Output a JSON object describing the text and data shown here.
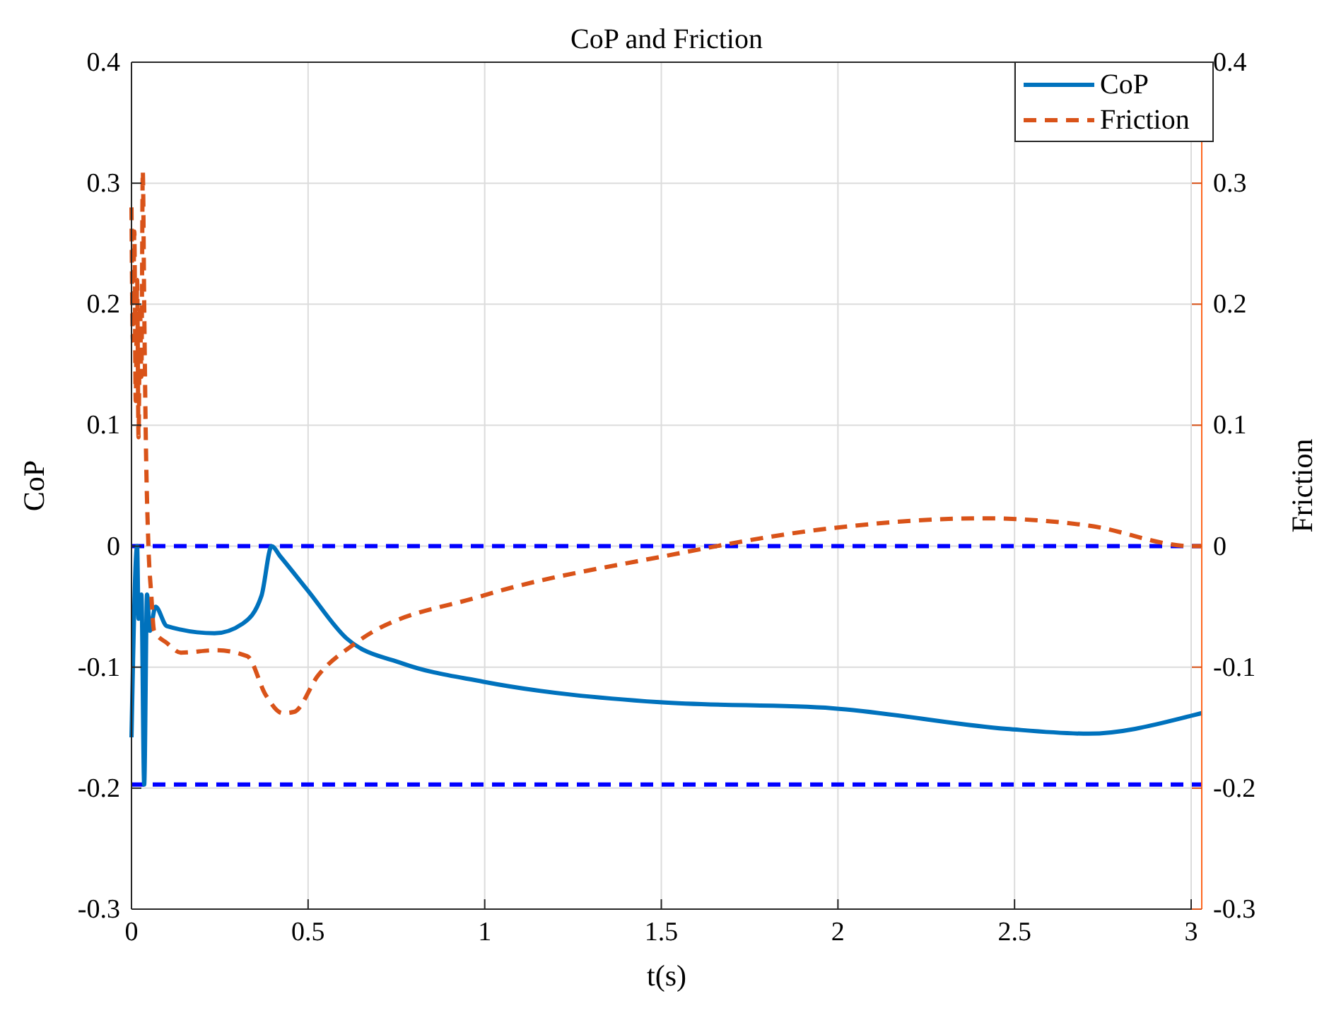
{
  "chart_data": {
    "type": "line",
    "title": "CoP and Friction",
    "xlabel": "t(s)",
    "ylabel": "CoP",
    "y2label": "Friction",
    "xlim": [
      0,
      3.03
    ],
    "xticks": [
      0,
      0.5,
      1,
      1.5,
      2,
      2.5,
      3
    ],
    "ylim": [
      -0.3,
      0.4
    ],
    "yticks": [
      -0.3,
      -0.2,
      -0.1,
      0,
      0.1,
      0.2,
      0.3,
      0.4
    ],
    "y2lim": [
      -0.3,
      0.4
    ],
    "y2ticks": [
      -0.3,
      -0.2,
      -0.1,
      0,
      0.1,
      0.2,
      0.3,
      0.4
    ],
    "grid": true,
    "legend": "top right",
    "ref_lines": [
      {
        "axis": "y",
        "value": 0,
        "color": "#0000ff",
        "line_style": "dashed"
      },
      {
        "axis": "y",
        "value": -0.197,
        "color": "#0000ff",
        "line_style": "dashed"
      }
    ],
    "series": [
      {
        "name": "CoP",
        "color": "#0072bd",
        "line_style": "solid",
        "x": [
          0,
          0.016,
          0.02,
          0.028,
          0.036,
          0.044,
          0.052,
          0.068,
          0.1,
          0.235,
          0.315,
          0.368,
          0.397,
          0.42,
          0.5,
          0.608,
          0.768,
          0.995,
          1.495,
          1.986,
          2.478,
          2.71,
          3.003,
          3.03
        ],
        "values": [
          -0.158,
          0,
          -0.06,
          -0.04,
          -0.197,
          -0.04,
          -0.07,
          -0.05,
          -0.066,
          -0.072,
          -0.064,
          -0.041,
          0,
          -0.008,
          -0.037,
          -0.076,
          -0.097,
          -0.112,
          -0.129,
          -0.134,
          -0.151,
          -0.155,
          -0.14,
          -0.138
        ]
      },
      {
        "name": "Friction",
        "color": "#d95319",
        "line_style": "dashed",
        "axis": "y2",
        "x": [
          0,
          0.004,
          0.008,
          0.012,
          0.016,
          0.02,
          0.024,
          0.028,
          0.032,
          0.036,
          0.04,
          0.048,
          0.056,
          0.064,
          0.1,
          0.14,
          0.24,
          0.328,
          0.38,
          0.428,
          0.46,
          0.528,
          0.635,
          0.995,
          1.495,
          1.986,
          2.41,
          2.71,
          3.003,
          3.03
        ],
        "values": [
          0.28,
          0.17,
          0.26,
          0.12,
          0.22,
          0.09,
          0.2,
          0.14,
          0.31,
          0.2,
          0.1,
          0,
          -0.04,
          -0.07,
          -0.08,
          -0.088,
          -0.086,
          -0.091,
          -0.123,
          -0.138,
          -0.137,
          -0.107,
          -0.08,
          -0.041,
          -0.009,
          0.015,
          0.023,
          0.017,
          0,
          0
        ]
      }
    ]
  }
}
